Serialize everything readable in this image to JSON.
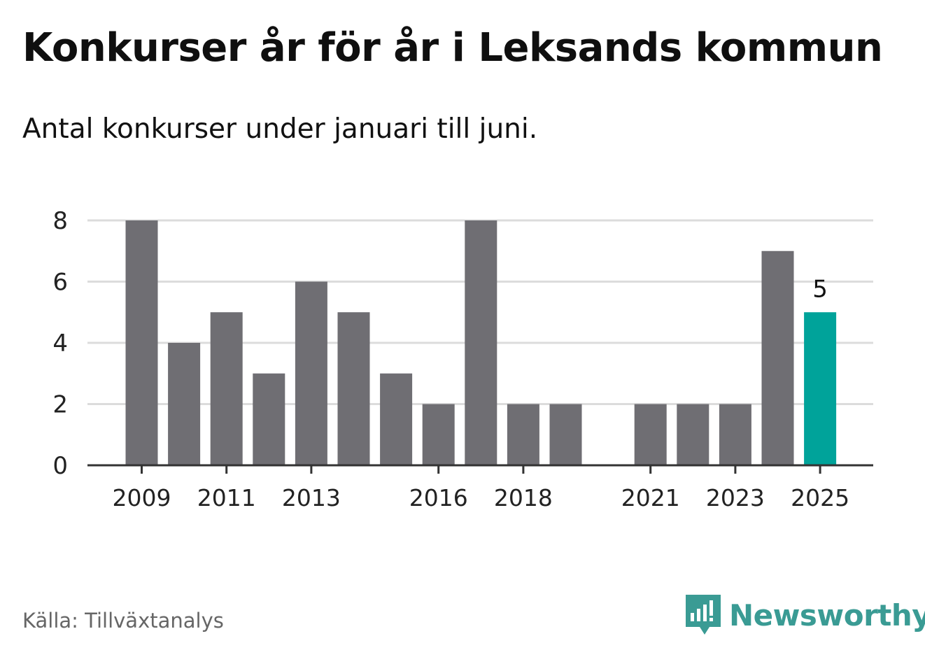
{
  "header": {
    "title": "Konkurser år för år i Leksands kommun",
    "subtitle": "Antal konkurser under januari till juni."
  },
  "footer": {
    "source": "Källa: Tillväxtanalys",
    "brand": "Newsworthy",
    "brand_icon": "newsworthy-logo-icon"
  },
  "colors": {
    "bar": "#6f6e73",
    "highlight": "#00a39a",
    "grid": "#dcdcdc",
    "axis": "#333333",
    "tick_text": "#222222",
    "brand": "#3a9b94"
  },
  "chart_data": {
    "type": "bar",
    "title": "",
    "xlabel": "",
    "ylabel": "",
    "categories": [
      2009,
      2010,
      2011,
      2012,
      2013,
      2014,
      2015,
      2016,
      2017,
      2018,
      2019,
      2020,
      2021,
      2022,
      2023,
      2024,
      2025
    ],
    "values": [
      8,
      4,
      5,
      3,
      6,
      5,
      3,
      2,
      8,
      2,
      2,
      0,
      2,
      2,
      2,
      7,
      5
    ],
    "highlight_index": 16,
    "data_labels": [
      {
        "index": 16,
        "text": "5"
      }
    ],
    "x_tick_labels": [
      "2009",
      "2011",
      "2013",
      "2016",
      "2018",
      "2021",
      "2023",
      "2025"
    ],
    "y_ticks": [
      0,
      2,
      4,
      6,
      8
    ],
    "ylim": [
      0,
      8
    ],
    "grid": true,
    "legend": "none"
  }
}
